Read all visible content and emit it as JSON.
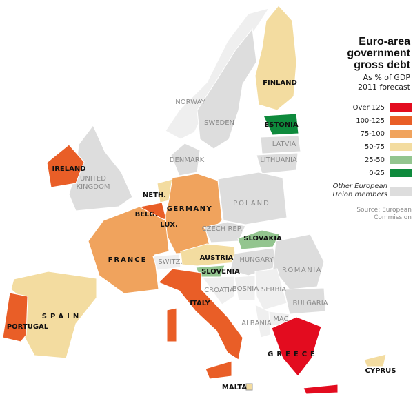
{
  "title": "Euro-area government gross debt",
  "subtitle": "As % of GDP 2011 forecast",
  "legend": [
    {
      "label": "Over 125",
      "color": "#e30c1f"
    },
    {
      "label": "100-125",
      "color": "#e95e27"
    },
    {
      "label": "75-100",
      "color": "#f0a35d"
    },
    {
      "label": "50-75",
      "color": "#f3dca0"
    },
    {
      "label": "25-50",
      "color": "#93c58f"
    },
    {
      "label": "0-25",
      "color": "#0e8a3c"
    }
  ],
  "other_members": {
    "label": "Other European Union members",
    "color": "#dddddd"
  },
  "source": "Source: European Commission",
  "countries": [
    {
      "label": "FINLAND",
      "color": "#f3dca0"
    },
    {
      "label": "ESTONIA",
      "color": "#0e8a3c"
    },
    {
      "label": "NORWAY",
      "color": "#efefef"
    },
    {
      "label": "SWEDEN",
      "color": "#dddddd"
    },
    {
      "label": "LATVIA",
      "color": "#dddddd"
    },
    {
      "label": "LITHUANIA",
      "color": "#dddddd"
    },
    {
      "label": "DENMARK",
      "color": "#dddddd"
    },
    {
      "label": "IRELAND",
      "color": "#e95e27"
    },
    {
      "label": "UNITED KINGDOM",
      "color": "#dddddd"
    },
    {
      "label": "NETH.",
      "color": "#f3dca0"
    },
    {
      "label": "BELG.",
      "color": "#e95e27"
    },
    {
      "label": "LUX.",
      "color": "#0e8a3c"
    },
    {
      "label": "GERMANY",
      "color": "#f0a35d"
    },
    {
      "label": "POLAND",
      "color": "#dddddd"
    },
    {
      "label": "CZECH REP.",
      "color": "#dddddd"
    },
    {
      "label": "SLOVAKIA",
      "color": "#93c58f"
    },
    {
      "label": "FRANCE",
      "color": "#f0a35d"
    },
    {
      "label": "SWITZ.",
      "color": "#efefef"
    },
    {
      "label": "AUSTRIA",
      "color": "#f3dca0"
    },
    {
      "label": "HUNGARY",
      "color": "#dddddd"
    },
    {
      "label": "SLOVENIA",
      "color": "#93c58f"
    },
    {
      "label": "ROMANIA",
      "color": "#dddddd"
    },
    {
      "label": "CROATIA",
      "color": "#efefef"
    },
    {
      "label": "BOSNIA",
      "color": "#efefef"
    },
    {
      "label": "SERBIA",
      "color": "#efefef"
    },
    {
      "label": "BULGARIA",
      "color": "#dddddd"
    },
    {
      "label": "ITALY",
      "color": "#e95e27"
    },
    {
      "label": "ALBANIA",
      "color": "#efefef"
    },
    {
      "label": "MAC.",
      "color": "#efefef"
    },
    {
      "label": "SPAIN",
      "color": "#f3dca0"
    },
    {
      "label": "PORTUGAL",
      "color": "#e95e27"
    },
    {
      "label": "GREECE",
      "color": "#e30c1f"
    },
    {
      "label": "CYPRUS",
      "color": "#f3dca0"
    },
    {
      "label": "MALTA",
      "color": "#f3dca0"
    }
  ]
}
